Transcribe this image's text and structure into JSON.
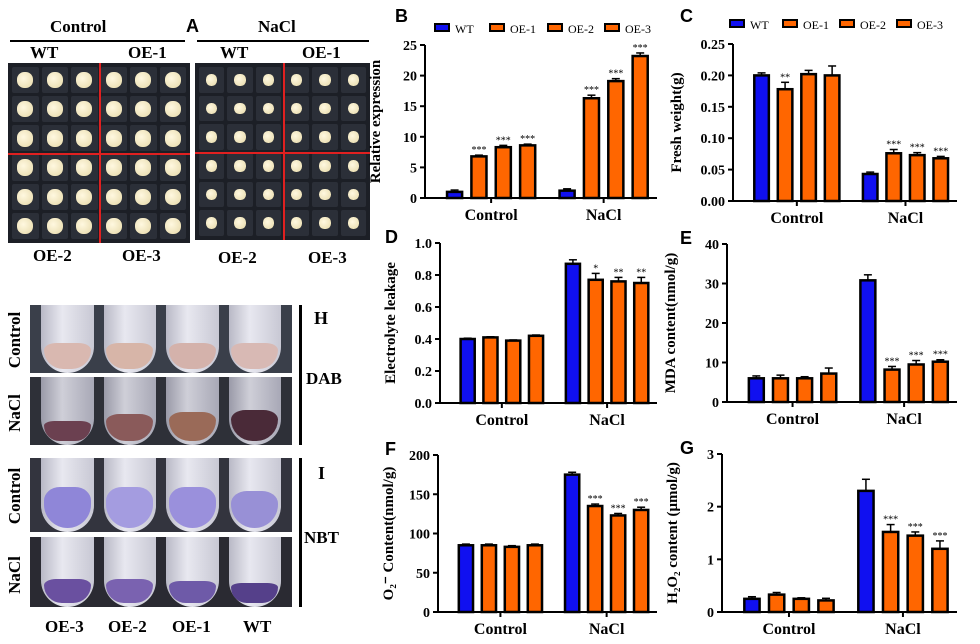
{
  "panel_a": {
    "letter": "A",
    "control_title": "Control",
    "nacl_title": "NaCl",
    "top_labels": [
      "WT",
      "OE-1",
      "WT",
      "OE-1"
    ],
    "bottom_labels": [
      "OE-2",
      "OE-3",
      "OE-2",
      "OE-3"
    ]
  },
  "panel_h": {
    "letter": "H",
    "stain": "DAB",
    "rows": [
      "Control",
      "NaCl"
    ]
  },
  "panel_i": {
    "letter": "I",
    "stain": "NBT",
    "rows": [
      "Control",
      "NaCl"
    ],
    "tube_labels": [
      "OE-3",
      "OE-2",
      "OE-1",
      "WT"
    ]
  },
  "colors": {
    "WT": "#1010f0",
    "OE": "#ff6600"
  },
  "legend": [
    "WT",
    "OE-1",
    "OE-2",
    "OE-3"
  ],
  "chart_data": [
    {
      "id": "B",
      "type": "bar",
      "letter": "B",
      "ylabel": "Relative expression",
      "categories": [
        "Control",
        "NaCl"
      ],
      "ylim": [
        0,
        25
      ],
      "ticks": [
        "0",
        "5",
        "10",
        "15",
        "20",
        "25"
      ],
      "legend": true,
      "series": [
        {
          "name": "WT",
          "values": [
            1.0,
            1.2
          ],
          "error": [
            0.3,
            0.3
          ]
        },
        {
          "name": "OE-1",
          "values": [
            6.8,
            16.3
          ],
          "error": [
            0.2,
            0.5
          ]
        },
        {
          "name": "OE-2",
          "values": [
            8.3,
            19.1
          ],
          "error": [
            0.3,
            0.4
          ]
        },
        {
          "name": "OE-3",
          "values": [
            8.6,
            23.2
          ],
          "error": [
            0.2,
            0.5
          ]
        }
      ],
      "significance": [
        [
          "",
          "***",
          "***",
          "***"
        ],
        [
          "",
          "***",
          "***",
          "***"
        ]
      ]
    },
    {
      "id": "C",
      "type": "bar",
      "letter": "C",
      "ylabel": "Fresh weight(g)",
      "categories": [
        "Control",
        "NaCl"
      ],
      "ylim": [
        0,
        0.25
      ],
      "ticks": [
        "0.00",
        "0.05",
        "0.10",
        "0.15",
        "0.20",
        "0.25"
      ],
      "legend": true,
      "series": [
        {
          "name": "WT",
          "values": [
            0.2,
            0.043
          ],
          "error": [
            0.004,
            0.003
          ]
        },
        {
          "name": "OE-1",
          "values": [
            0.178,
            0.076
          ],
          "error": [
            0.011,
            0.006
          ]
        },
        {
          "name": "OE-2",
          "values": [
            0.202,
            0.073
          ],
          "error": [
            0.006,
            0.004
          ]
        },
        {
          "name": "OE-3",
          "values": [
            0.2,
            0.068
          ],
          "error": [
            0.015,
            0.003
          ]
        }
      ],
      "significance": [
        [
          "",
          "**",
          "",
          ""
        ],
        [
          "",
          "***",
          "***",
          "***"
        ]
      ]
    },
    {
      "id": "D",
      "type": "bar",
      "letter": "D",
      "ylabel": "Electrolyte leakage",
      "categories": [
        "Control",
        "NaCl"
      ],
      "ylim": [
        0,
        1.0
      ],
      "ticks": [
        "0.0",
        "0.2",
        "0.4",
        "0.6",
        "0.8",
        "1.0"
      ],
      "legend": false,
      "series": [
        {
          "name": "WT",
          "values": [
            0.4,
            0.87
          ],
          "error": [
            0.005,
            0.025
          ]
        },
        {
          "name": "OE-1",
          "values": [
            0.41,
            0.77
          ],
          "error": [
            0.004,
            0.04
          ]
        },
        {
          "name": "OE-2",
          "values": [
            0.39,
            0.76
          ],
          "error": [
            0.004,
            0.025
          ]
        },
        {
          "name": "OE-3",
          "values": [
            0.42,
            0.75
          ],
          "error": [
            0.005,
            0.035
          ]
        }
      ],
      "significance": [
        [
          "",
          "",
          "",
          ""
        ],
        [
          "",
          "*",
          "**",
          "**"
        ]
      ]
    },
    {
      "id": "E",
      "type": "bar",
      "letter": "E",
      "ylabel": "MDA content(nmol/g)",
      "categories": [
        "Control",
        "NaCl"
      ],
      "ylim": [
        0,
        40
      ],
      "ticks": [
        "0",
        "10",
        "20",
        "30",
        "40"
      ],
      "legend": false,
      "series": [
        {
          "name": "WT",
          "values": [
            6.0,
            30.8
          ],
          "error": [
            0.6,
            1.4
          ]
        },
        {
          "name": "OE-1",
          "values": [
            6.0,
            8.2
          ],
          "error": [
            0.8,
            0.8
          ]
        },
        {
          "name": "OE-2",
          "values": [
            6.0,
            9.5
          ],
          "error": [
            0.4,
            1.0
          ]
        },
        {
          "name": "OE-3",
          "values": [
            7.2,
            10.2
          ],
          "error": [
            1.4,
            0.5
          ]
        }
      ],
      "significance": [
        [
          "",
          "",
          "",
          ""
        ],
        [
          "",
          "***",
          "***",
          "***"
        ]
      ]
    },
    {
      "id": "F",
      "type": "bar",
      "letter": "F",
      "ylabel": "O₂⁻ Content(nmol/g)",
      "categories": [
        "Control",
        "NaCl"
      ],
      "ylim": [
        0,
        200
      ],
      "ticks": [
        "0",
        "50",
        "100",
        "150",
        "200"
      ],
      "legend": false,
      "series": [
        {
          "name": "WT",
          "values": [
            85,
            175
          ],
          "error": [
            1.5,
            3
          ]
        },
        {
          "name": "OE-1",
          "values": [
            85,
            135
          ],
          "error": [
            1.5,
            2.5
          ]
        },
        {
          "name": "OE-2",
          "values": [
            83,
            123
          ],
          "error": [
            1.5,
            2.5
          ]
        },
        {
          "name": "OE-3",
          "values": [
            85,
            130
          ],
          "error": [
            1.5,
            3.5
          ]
        }
      ],
      "significance": [
        [
          "",
          "",
          "",
          ""
        ],
        [
          "",
          "***",
          "***",
          "***"
        ]
      ]
    },
    {
      "id": "G",
      "type": "bar",
      "letter": "G",
      "ylabel": "H₂O₂ content (μmol/g)",
      "categories": [
        "Control",
        "NaCl"
      ],
      "ylim": [
        0,
        3
      ],
      "ticks": [
        "0",
        "1",
        "2",
        "3"
      ],
      "legend": false,
      "series": [
        {
          "name": "WT",
          "values": [
            0.25,
            2.3
          ],
          "error": [
            0.04,
            0.22
          ]
        },
        {
          "name": "OE-1",
          "values": [
            0.33,
            1.52
          ],
          "error": [
            0.04,
            0.14
          ]
        },
        {
          "name": "OE-2",
          "values": [
            0.25,
            1.45
          ],
          "error": [
            0.02,
            0.07
          ]
        },
        {
          "name": "OE-3",
          "values": [
            0.22,
            1.2
          ],
          "error": [
            0.04,
            0.15
          ]
        }
      ],
      "significance": [
        [
          "",
          "",
          "",
          ""
        ],
        [
          "",
          "***",
          "***",
          "***"
        ]
      ]
    }
  ]
}
